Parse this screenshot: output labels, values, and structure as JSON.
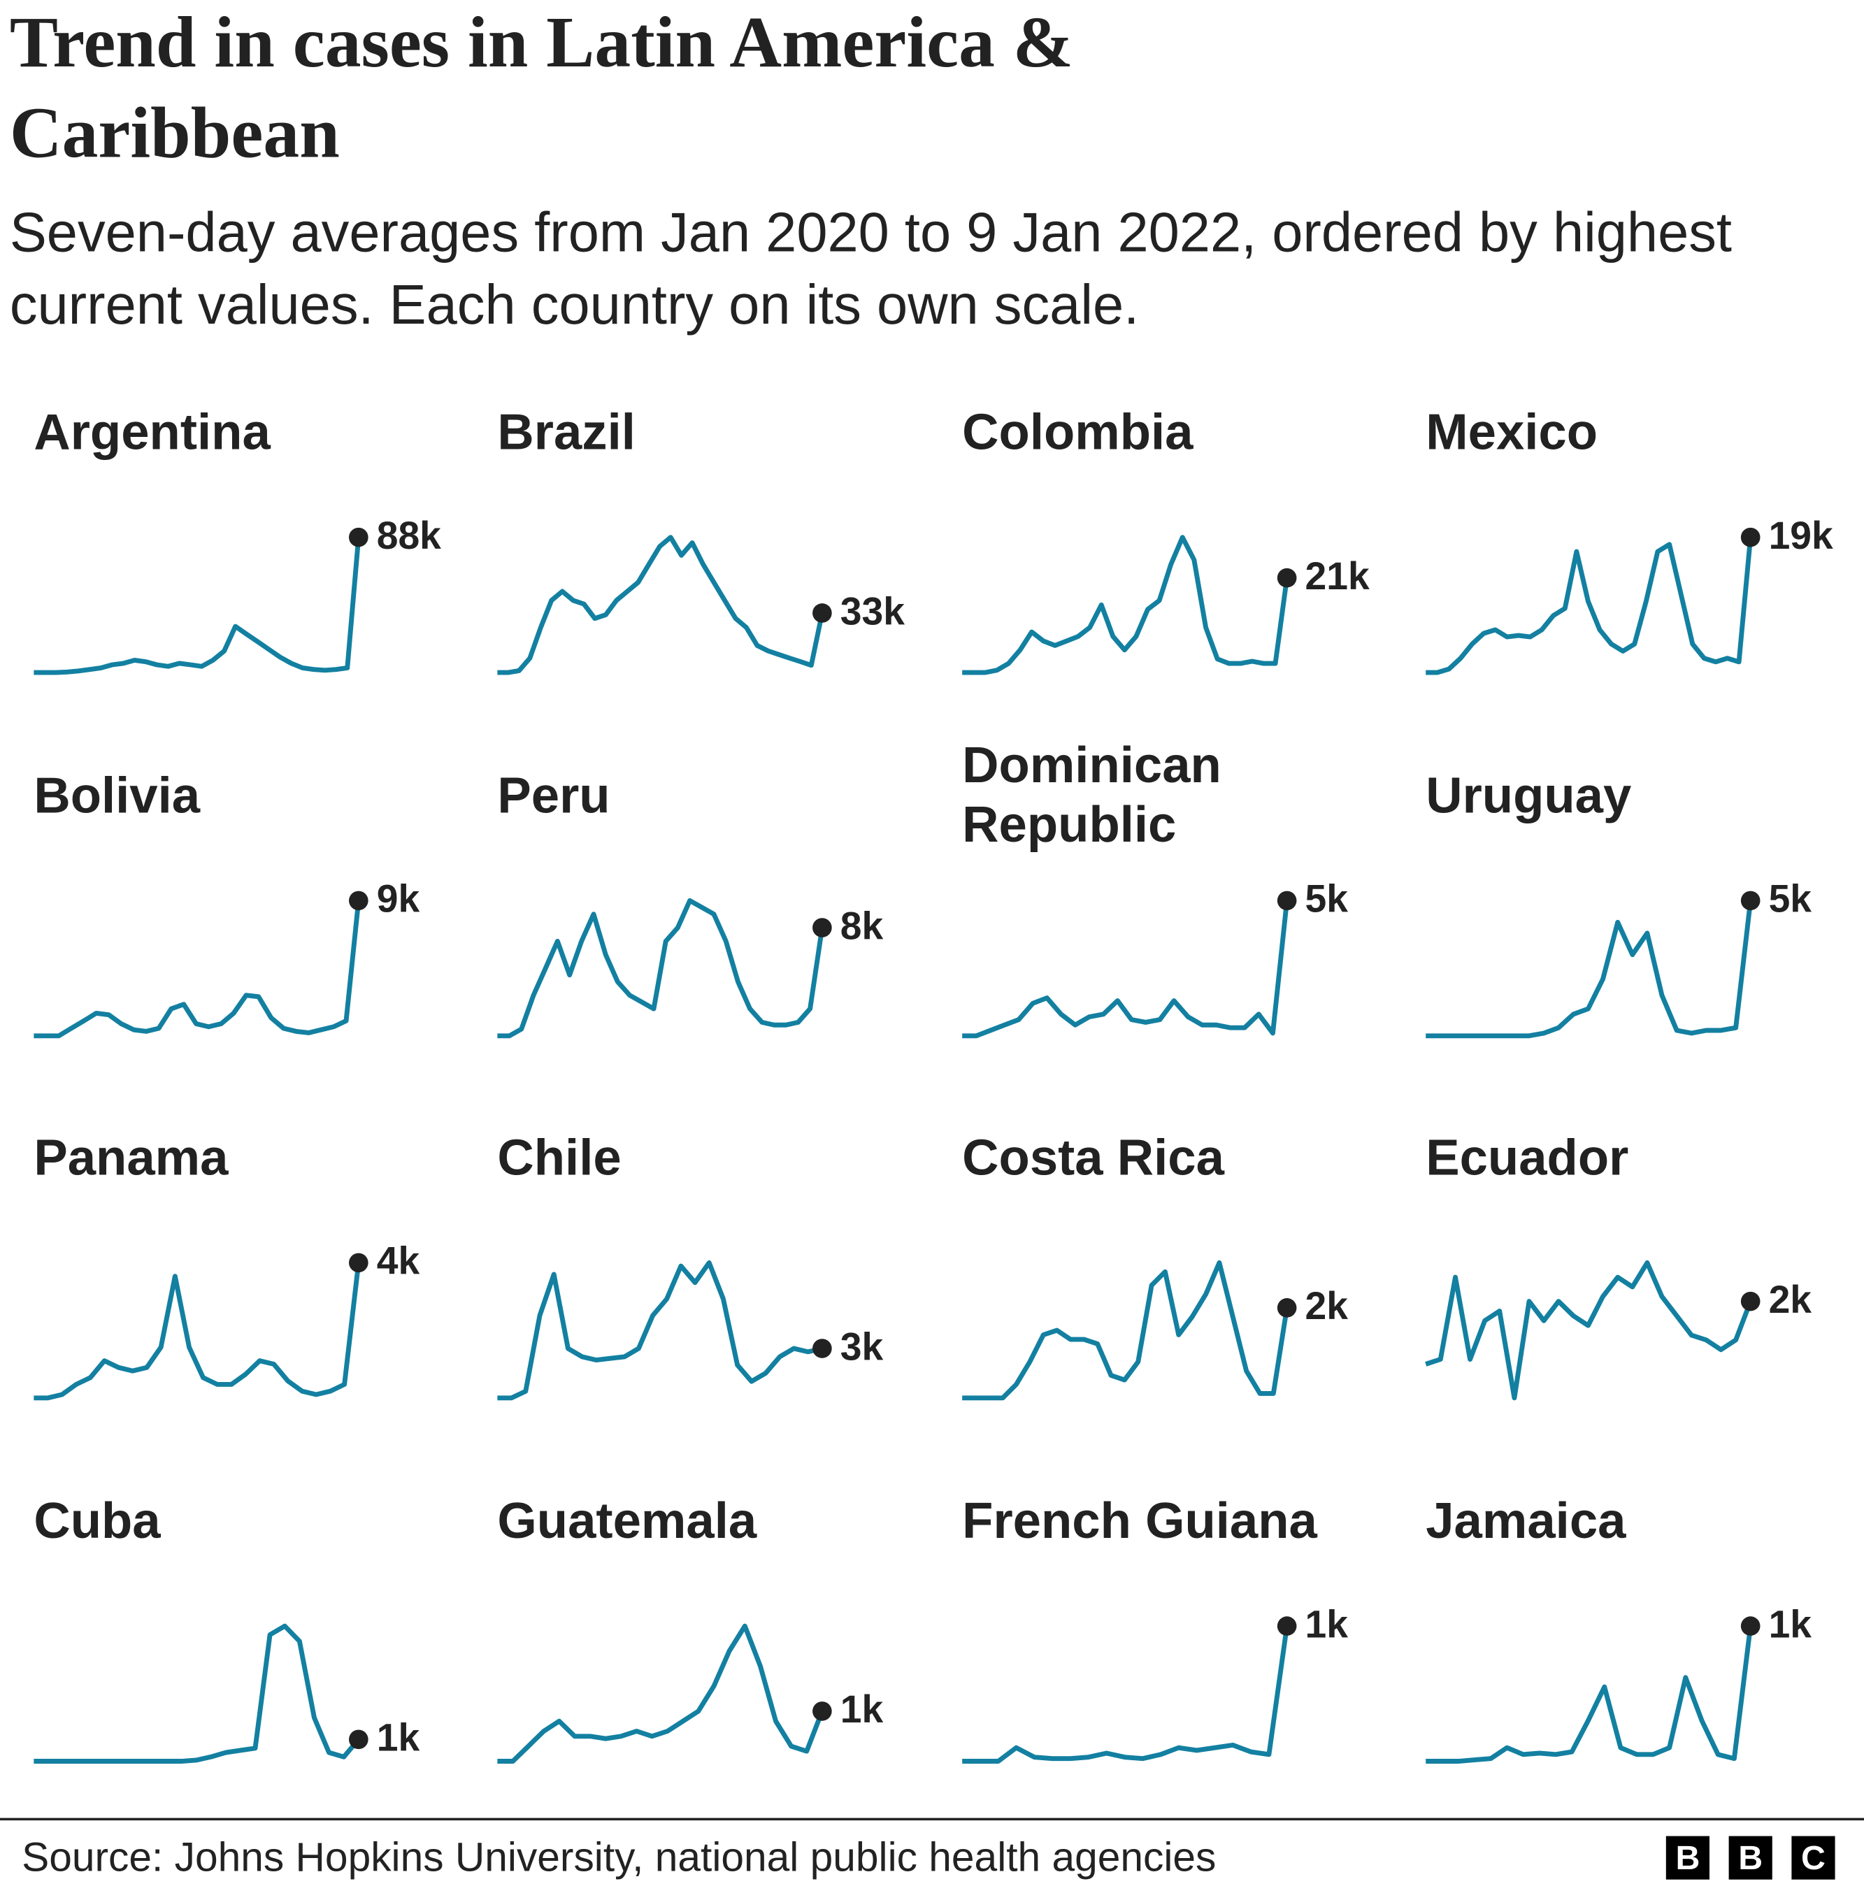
{
  "title": "Trend in cases in Latin America & Caribbean",
  "subtitle": "Seven-day averages from Jan 2020 to 9 Jan 2022, ordered by highest current values. Each country on its own scale.",
  "source": "Source: Johns Hopkins University, national public health agencies",
  "logo": [
    "B",
    "B",
    "C"
  ],
  "chart_data": [
    {
      "type": "line",
      "title": "Argentina",
      "color": "#1380a1",
      "values": [
        0,
        0,
        0,
        0.3,
        1,
        2,
        3,
        5,
        6,
        8,
        7,
        5,
        4,
        6,
        5,
        4,
        8,
        14,
        30,
        25,
        20,
        15,
        10,
        6,
        3,
        2,
        1.5,
        2,
        3,
        88
      ],
      "latest": {
        "value": 88,
        "label": "88k"
      }
    },
    {
      "type": "line",
      "title": "Brazil",
      "color": "#1380a1",
      "values": [
        0,
        0,
        1,
        8,
        25,
        40,
        45,
        40,
        38,
        30,
        32,
        40,
        45,
        50,
        60,
        70,
        75,
        65,
        72,
        60,
        50,
        40,
        30,
        25,
        15,
        12,
        10,
        8,
        6,
        4,
        33
      ],
      "latest": {
        "value": 33,
        "label": "33k"
      }
    },
    {
      "type": "line",
      "title": "Colombia",
      "color": "#1380a1",
      "values": [
        0,
        0,
        0,
        0.5,
        2,
        5,
        9,
        7,
        6,
        7,
        8,
        10,
        15,
        8,
        5,
        8,
        14,
        16,
        24,
        30,
        25,
        10,
        3,
        2,
        2,
        2.5,
        2,
        2,
        21
      ],
      "latest": {
        "value": 21,
        "label": "21k"
      }
    },
    {
      "type": "line",
      "title": "Mexico",
      "color": "#1380a1",
      "values": [
        0,
        0,
        0.5,
        2,
        4,
        5.5,
        6,
        5,
        5.2,
        5,
        6,
        8,
        9,
        17,
        10,
        6,
        4,
        3,
        4,
        10,
        17,
        18,
        11,
        4,
        2,
        1.5,
        2,
        1.5,
        19
      ],
      "latest": {
        "value": 19,
        "label": "19k"
      }
    },
    {
      "type": "line",
      "title": "Bolivia",
      "color": "#1380a1",
      "values": [
        0,
        0,
        0,
        0.5,
        1,
        1.5,
        1.4,
        0.8,
        0.4,
        0.3,
        0.5,
        1.8,
        2.1,
        0.8,
        0.6,
        0.8,
        1.5,
        2.7,
        2.6,
        1.2,
        0.5,
        0.3,
        0.2,
        0.4,
        0.6,
        1,
        9
      ],
      "latest": {
        "value": 9,
        "label": "9k"
      }
    },
    {
      "type": "line",
      "title": "Peru",
      "color": "#1380a1",
      "values": [
        0,
        0,
        0.5,
        3,
        5,
        7,
        4.5,
        7,
        9,
        6,
        4,
        3,
        2.5,
        2,
        7,
        8,
        10,
        9.5,
        9,
        7,
        4,
        2,
        1,
        0.8,
        0.8,
        1,
        2,
        8
      ],
      "latest": {
        "value": 8,
        "label": "8k"
      }
    },
    {
      "type": "line",
      "title": "Dominican Republic",
      "color": "#1380a1",
      "values": [
        0,
        0,
        0.2,
        0.4,
        0.6,
        1.2,
        1.4,
        0.8,
        0.4,
        0.7,
        0.8,
        1.3,
        0.6,
        0.5,
        0.6,
        1.3,
        0.7,
        0.4,
        0.4,
        0.3,
        0.3,
        0.8,
        0.1,
        5
      ],
      "latest": {
        "value": 5,
        "label": "5k"
      }
    },
    {
      "type": "line",
      "title": "Uruguay",
      "color": "#1380a1",
      "values": [
        0,
        0,
        0,
        0,
        0,
        0,
        0,
        0,
        0.1,
        0.3,
        0.8,
        1,
        2.1,
        4.2,
        3,
        3.8,
        1.5,
        0.2,
        0.1,
        0.2,
        0.2,
        0.3,
        5
      ],
      "latest": {
        "value": 5,
        "label": "5k"
      }
    },
    {
      "type": "line",
      "title": "Panama",
      "color": "#1380a1",
      "values": [
        0,
        0,
        0.1,
        0.4,
        0.6,
        1.1,
        0.9,
        0.8,
        0.9,
        1.5,
        3.6,
        1.5,
        0.6,
        0.4,
        0.4,
        0.7,
        1.1,
        1,
        0.5,
        0.2,
        0.1,
        0.2,
        0.4,
        4
      ],
      "latest": {
        "value": 4,
        "label": "4k"
      }
    },
    {
      "type": "line",
      "title": "Chile",
      "color": "#1380a1",
      "values": [
        0,
        0,
        0.4,
        5,
        7.5,
        3,
        2.5,
        2.3,
        2.4,
        2.5,
        3,
        5,
        6,
        8,
        7,
        8.2,
        6,
        2,
        1,
        1.5,
        2.5,
        3,
        2.8,
        3
      ],
      "latest": {
        "value": 3,
        "label": "3k"
      }
    },
    {
      "type": "line",
      "title": "Costa Rica",
      "color": "#1380a1",
      "values": [
        0,
        0,
        0,
        0,
        0.3,
        0.8,
        1.4,
        1.5,
        1.3,
        1.3,
        1.2,
        0.5,
        0.4,
        0.8,
        2.5,
        2.8,
        1.4,
        1.8,
        2.3,
        3,
        1.8,
        0.6,
        0.1,
        0.1,
        2
      ],
      "latest": {
        "value": 2,
        "label": "2k"
      }
    },
    {
      "type": "line",
      "title": "Ecuador",
      "color": "#1380a1",
      "values": [
        0.7,
        0.8,
        2.5,
        0.8,
        1.6,
        1.8,
        0,
        2,
        1.6,
        2,
        1.7,
        1.5,
        2.1,
        2.5,
        2.3,
        2.8,
        2.1,
        1.7,
        1.3,
        1.2,
        1,
        1.2,
        2
      ],
      "latest": {
        "value": 2,
        "label": "2k"
      }
    },
    {
      "type": "line",
      "title": "Cuba",
      "color": "#1380a1",
      "values": [
        0,
        0,
        0,
        0,
        0,
        0,
        0,
        0,
        0,
        0,
        0,
        0.05,
        0.2,
        0.4,
        0.5,
        0.6,
        5.8,
        6.2,
        5.5,
        2,
        0.4,
        0.2,
        1
      ],
      "latest": {
        "value": 1,
        "label": "1k"
      }
    },
    {
      "type": "line",
      "title": "Guatemala",
      "color": "#1380a1",
      "values": [
        0,
        0,
        0.3,
        0.6,
        0.8,
        0.5,
        0.5,
        0.45,
        0.5,
        0.6,
        0.5,
        0.6,
        0.8,
        1,
        1.5,
        2.2,
        2.7,
        1.9,
        0.8,
        0.3,
        0.2,
        1
      ],
      "latest": {
        "value": 1,
        "label": "1k"
      }
    },
    {
      "type": "line",
      "title": "French Guiana",
      "color": "#1380a1",
      "values": [
        0,
        0,
        0,
        0.1,
        0.03,
        0.02,
        0.02,
        0.03,
        0.06,
        0.03,
        0.02,
        0.05,
        0.1,
        0.08,
        0.1,
        0.12,
        0.07,
        0.05,
        1
      ],
      "latest": {
        "value": 1,
        "label": "1k"
      }
    },
    {
      "type": "line",
      "title": "Jamaica",
      "color": "#1380a1",
      "values": [
        0,
        0,
        0,
        0.01,
        0.02,
        0.1,
        0.05,
        0.06,
        0.05,
        0.07,
        0.3,
        0.55,
        0.1,
        0.05,
        0.05,
        0.1,
        0.62,
        0.3,
        0.05,
        0.02,
        1
      ],
      "latest": {
        "value": 1,
        "label": "1k"
      }
    }
  ]
}
